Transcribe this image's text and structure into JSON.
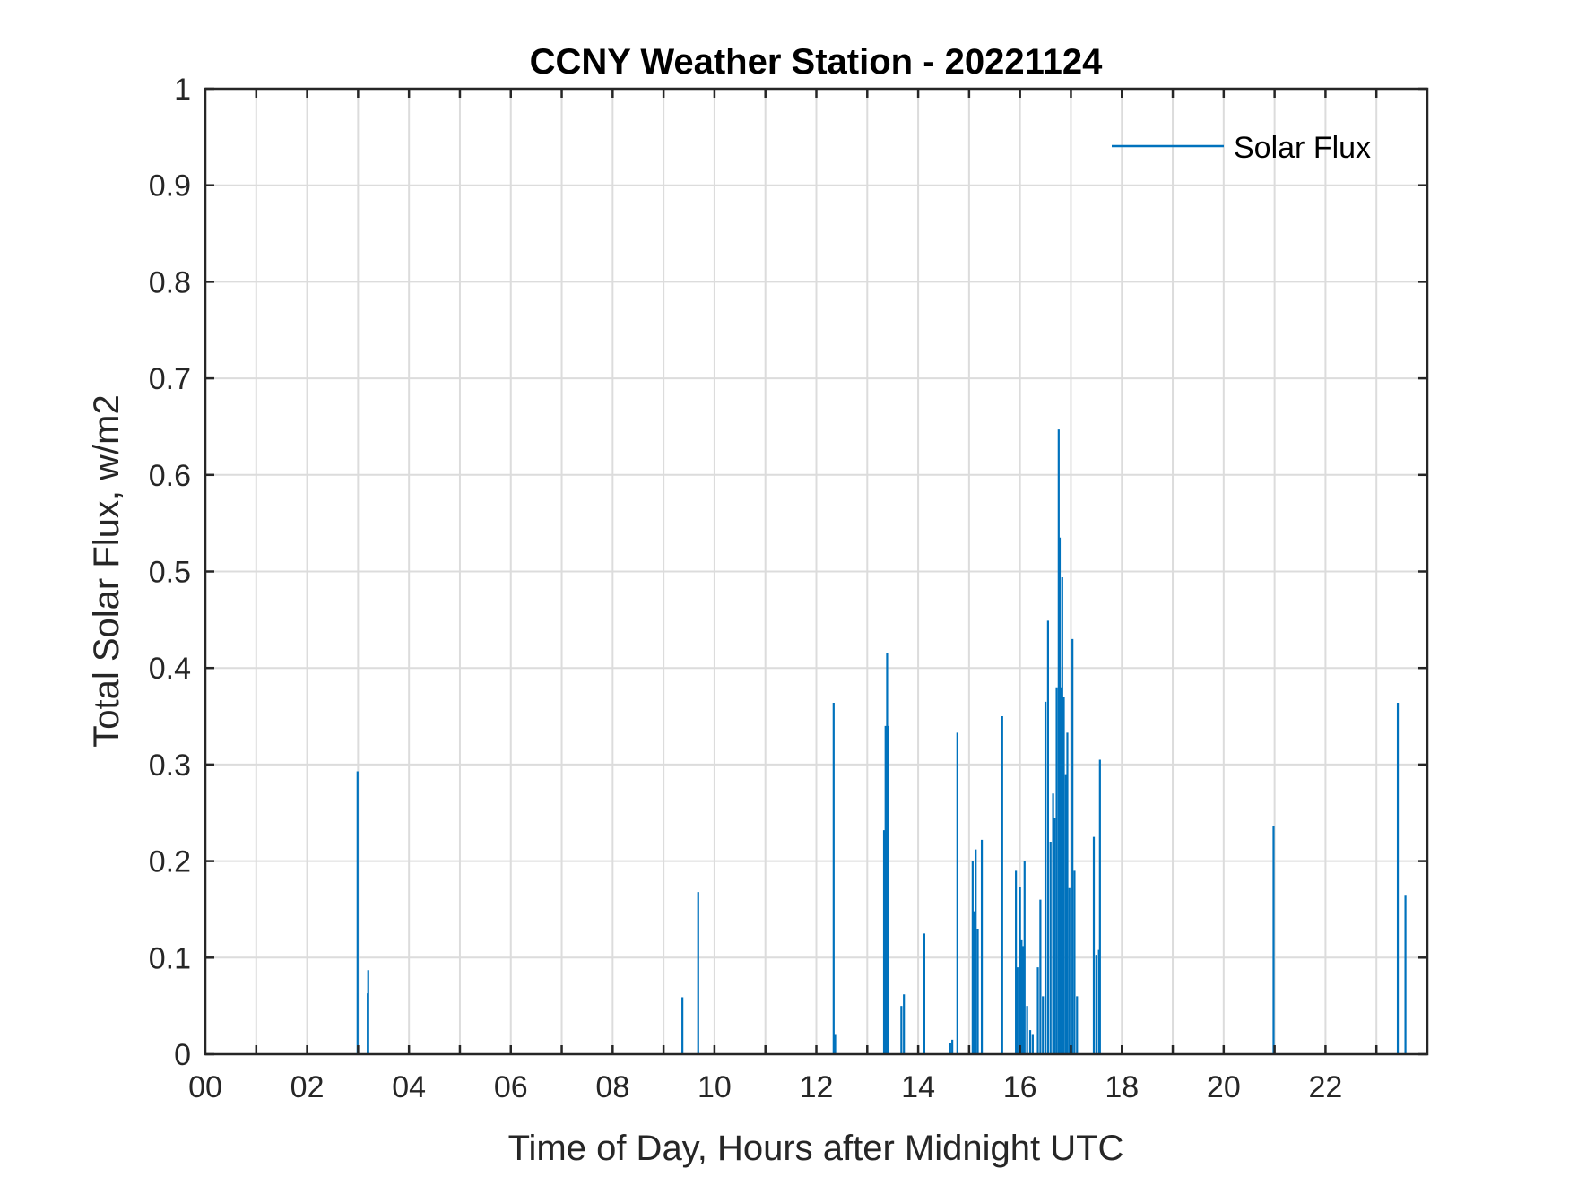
{
  "chart_data": {
    "type": "line",
    "title": "CCNY Weather Station - 20221124",
    "xlabel": "Time of Day, Hours after Midnight UTC",
    "ylabel": "Total Solar Flux, w/m2",
    "xlim": [
      0,
      24
    ],
    "ylim": [
      0,
      1
    ],
    "x_ticks": [
      0,
      2,
      4,
      6,
      8,
      10,
      12,
      14,
      16,
      18,
      20,
      22
    ],
    "x_tick_labels": [
      "00",
      "02",
      "04",
      "06",
      "08",
      "10",
      "12",
      "14",
      "16",
      "18",
      "20",
      "22"
    ],
    "y_ticks": [
      0,
      0.1,
      0.2,
      0.3,
      0.4,
      0.5,
      0.6,
      0.7,
      0.8,
      0.9,
      1
    ],
    "y_tick_labels": [
      "0",
      "0.1",
      "0.2",
      "0.3",
      "0.4",
      "0.5",
      "0.6",
      "0.7",
      "0.8",
      "0.9",
      "1"
    ],
    "grid": true,
    "legend_position": "top-right",
    "series_color": "#0072BD",
    "series": [
      {
        "name": "Solar Flux",
        "x": [
          2.99,
          3.19,
          3.2,
          9.37,
          9.68,
          12.34,
          12.37,
          13.33,
          13.36,
          13.39,
          13.41,
          13.67,
          13.72,
          14.12,
          14.63,
          14.67,
          14.77,
          15.07,
          15.1,
          15.13,
          15.17,
          15.25,
          15.65,
          15.92,
          15.95,
          16.0,
          16.03,
          16.06,
          16.09,
          16.14,
          16.2,
          16.25,
          16.35,
          16.4,
          16.45,
          16.5,
          16.55,
          16.6,
          16.65,
          16.68,
          16.72,
          16.76,
          16.78,
          16.8,
          16.83,
          16.86,
          16.9,
          16.93,
          16.97,
          17.03,
          17.07,
          17.12,
          17.45,
          17.5,
          17.55,
          17.57,
          20.98,
          23.42,
          23.57
        ],
        "values": [
          0.293,
          0.063,
          0.087,
          0.059,
          0.168,
          0.364,
          0.02,
          0.232,
          0.34,
          0.415,
          0.34,
          0.05,
          0.062,
          0.125,
          0.012,
          0.015,
          0.333,
          0.2,
          0.148,
          0.212,
          0.13,
          0.222,
          0.35,
          0.19,
          0.09,
          0.173,
          0.118,
          0.112,
          0.2,
          0.05,
          0.025,
          0.02,
          0.09,
          0.16,
          0.06,
          0.365,
          0.449,
          0.22,
          0.27,
          0.245,
          0.38,
          0.647,
          0.535,
          0.38,
          0.494,
          0.37,
          0.29,
          0.333,
          0.172,
          0.43,
          0.19,
          0.06,
          0.225,
          0.103,
          0.108,
          0.305,
          0.236,
          0.364,
          0.165
        ]
      }
    ]
  }
}
